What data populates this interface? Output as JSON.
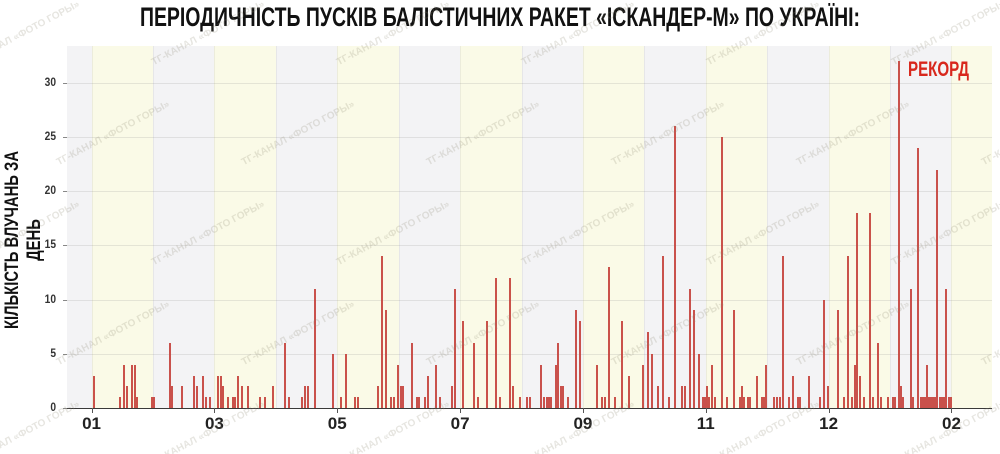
{
  "title": "ПЕРІОДИЧНІСТЬ ПУСКІВ БАЛІСТИЧНИХ РАКЕТ «ІСКАНДЕР-М» ПО УКРАЇНІ:",
  "watermark_text": "ТГ-КАНАЛ «ФОТО ГОРЫ»",
  "annotation": {
    "record_label": "РЕКОРД"
  },
  "colors": {
    "bar": "#c5433d",
    "record_red": "#d8271c",
    "band_yellow": "#fafae7",
    "band_gray": "#f3f3f5",
    "title_black": "#111111"
  },
  "chart_data": {
    "type": "bar",
    "title": "ПЕРІОДИЧНІСТЬ ПУСКІВ БАЛІСТИЧНИХ РАКЕТ «ІСКАНДЕР-М» ПО УКРАЇНІ:",
    "ylabel": "КІЛЬКІСТЬ ВЛУЧАНЬ ЗА ДЕНЬ",
    "xlabel": "",
    "grid": true,
    "legend": false,
    "x_unit": "months since tick 01 (daily bars)",
    "xlim": [
      -0.4,
      14.66
    ],
    "ylim": [
      0,
      33.4
    ],
    "yticks": [
      0,
      5,
      10,
      15,
      20,
      25,
      30
    ],
    "xticks": [
      {
        "pos": 0,
        "label": "01"
      },
      {
        "pos": 2,
        "label": "03"
      },
      {
        "pos": 4,
        "label": "05"
      },
      {
        "pos": 6,
        "label": "07"
      },
      {
        "pos": 8,
        "label": "09"
      },
      {
        "pos": 10,
        "label": "11"
      },
      {
        "pos": 12,
        "label": "12"
      },
      {
        "pos": 14,
        "label": "02"
      }
    ],
    "annotation": {
      "label": "РЕКОРД",
      "at_x": 13.14,
      "at_value": 32
    },
    "bars": [
      [
        0.04,
        3
      ],
      [
        0.46,
        1
      ],
      [
        0.53,
        4
      ],
      [
        0.58,
        2
      ],
      [
        0.66,
        4
      ],
      [
        0.71,
        4
      ],
      [
        0.74,
        1
      ],
      [
        0.98,
        1
      ],
      [
        1.02,
        1
      ],
      [
        1.28,
        6
      ],
      [
        1.31,
        2
      ],
      [
        1.47,
        2
      ],
      [
        1.67,
        3
      ],
      [
        1.72,
        2
      ],
      [
        1.82,
        3
      ],
      [
        1.86,
        1
      ],
      [
        1.93,
        1
      ],
      [
        2.06,
        3
      ],
      [
        2.11,
        3
      ],
      [
        2.14,
        2
      ],
      [
        2.22,
        1
      ],
      [
        2.3,
        1
      ],
      [
        2.34,
        1
      ],
      [
        2.38,
        3
      ],
      [
        2.45,
        2
      ],
      [
        2.55,
        2
      ],
      [
        2.74,
        1
      ],
      [
        2.82,
        1
      ],
      [
        2.95,
        2
      ],
      [
        3.15,
        6
      ],
      [
        3.21,
        1
      ],
      [
        3.43,
        1
      ],
      [
        3.48,
        2
      ],
      [
        3.52,
        2
      ],
      [
        3.64,
        11
      ],
      [
        3.93,
        5
      ],
      [
        4.06,
        1
      ],
      [
        4.14,
        5
      ],
      [
        4.29,
        1
      ],
      [
        4.34,
        1
      ],
      [
        4.66,
        2
      ],
      [
        4.73,
        14
      ],
      [
        4.79,
        9
      ],
      [
        4.88,
        1
      ],
      [
        4.92,
        1
      ],
      [
        4.99,
        4
      ],
      [
        5.04,
        2
      ],
      [
        5.07,
        2
      ],
      [
        5.22,
        6
      ],
      [
        5.3,
        1
      ],
      [
        5.33,
        1
      ],
      [
        5.43,
        1
      ],
      [
        5.48,
        3
      ],
      [
        5.61,
        4
      ],
      [
        5.67,
        1
      ],
      [
        5.87,
        2
      ],
      [
        5.92,
        11
      ],
      [
        6.05,
        8
      ],
      [
        6.23,
        6
      ],
      [
        6.29,
        1
      ],
      [
        6.44,
        8
      ],
      [
        6.59,
        12
      ],
      [
        6.65,
        1
      ],
      [
        6.81,
        12
      ],
      [
        6.86,
        2
      ],
      [
        6.98,
        1
      ],
      [
        7.09,
        1
      ],
      [
        7.14,
        1
      ],
      [
        7.32,
        4
      ],
      [
        7.37,
        1
      ],
      [
        7.41,
        1
      ],
      [
        7.45,
        1
      ],
      [
        7.48,
        1
      ],
      [
        7.56,
        4
      ],
      [
        7.59,
        6
      ],
      [
        7.64,
        2
      ],
      [
        7.68,
        2
      ],
      [
        7.76,
        1
      ],
      [
        7.89,
        9
      ],
      [
        7.95,
        8
      ],
      [
        8.23,
        4
      ],
      [
        8.31,
        1
      ],
      [
        8.36,
        1
      ],
      [
        8.42,
        13
      ],
      [
        8.52,
        1
      ],
      [
        8.64,
        8
      ],
      [
        8.75,
        3
      ],
      [
        8.98,
        4
      ],
      [
        9.06,
        7
      ],
      [
        9.12,
        5
      ],
      [
        9.22,
        2
      ],
      [
        9.3,
        14
      ],
      [
        9.4,
        1
      ],
      [
        9.5,
        26
      ],
      [
        9.61,
        2
      ],
      [
        9.66,
        2
      ],
      [
        9.74,
        11
      ],
      [
        9.81,
        9
      ],
      [
        9.89,
        5
      ],
      [
        9.95,
        1
      ],
      [
        9.99,
        1
      ],
      [
        10.02,
        2
      ],
      [
        10.05,
        1
      ],
      [
        10.1,
        4
      ],
      [
        10.15,
        1
      ],
      [
        10.26,
        25
      ],
      [
        10.34,
        1
      ],
      [
        10.46,
        9
      ],
      [
        10.56,
        1
      ],
      [
        10.59,
        2
      ],
      [
        10.62,
        1
      ],
      [
        10.69,
        1
      ],
      [
        10.72,
        1
      ],
      [
        10.83,
        3
      ],
      [
        10.91,
        1
      ],
      [
        10.95,
        1
      ],
      [
        10.98,
        4
      ],
      [
        11.11,
        1
      ],
      [
        11.16,
        1
      ],
      [
        11.21,
        1
      ],
      [
        11.26,
        14
      ],
      [
        11.35,
        1
      ],
      [
        11.42,
        3
      ],
      [
        11.5,
        1
      ],
      [
        11.53,
        1
      ],
      [
        11.68,
        3
      ],
      [
        11.86,
        1
      ],
      [
        11.92,
        10
      ],
      [
        11.99,
        2
      ],
      [
        12.15,
        9
      ],
      [
        12.25,
        1
      ],
      [
        12.31,
        14
      ],
      [
        12.38,
        1
      ],
      [
        12.43,
        4
      ],
      [
        12.46,
        18
      ],
      [
        12.51,
        3
      ],
      [
        12.57,
        1
      ],
      [
        12.67,
        18
      ],
      [
        12.72,
        1
      ],
      [
        12.8,
        6
      ],
      [
        12.85,
        1
      ],
      [
        12.97,
        1
      ],
      [
        13.05,
        1
      ],
      [
        13.08,
        1
      ],
      [
        13.14,
        32
      ],
      [
        13.18,
        2
      ],
      [
        13.21,
        1
      ],
      [
        13.34,
        11
      ],
      [
        13.37,
        1
      ],
      [
        13.45,
        24
      ],
      [
        13.5,
        1
      ],
      [
        13.53,
        1
      ],
      [
        13.57,
        1
      ],
      [
        13.6,
        4
      ],
      [
        13.63,
        1
      ],
      [
        13.67,
        1
      ],
      [
        13.7,
        1
      ],
      [
        13.73,
        1
      ],
      [
        13.76,
        22
      ],
      [
        13.81,
        1
      ],
      [
        13.84,
        1
      ],
      [
        13.88,
        1
      ],
      [
        13.91,
        11
      ],
      [
        13.96,
        1
      ],
      [
        13.99,
        1
      ]
    ]
  }
}
